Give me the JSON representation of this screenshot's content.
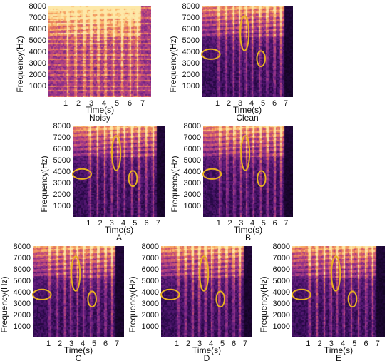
{
  "colors": {
    "background": "#000000",
    "highlight": "#e8b020",
    "colormap": [
      "#0a0214",
      "#2d0a4e",
      "#5a1a78",
      "#8c2f8a",
      "#c24a7c",
      "#e87a5a",
      "#fbb86a",
      "#fde8a8"
    ]
  },
  "axes": {
    "ylabel": "Frequency(Hz)",
    "xlabel": "Time(s)",
    "yticks": [
      "1000",
      "2000",
      "3000",
      "4000",
      "5000",
      "6000",
      "7000",
      "8000"
    ],
    "xticks": [
      "1",
      "2",
      "3",
      "4",
      "5",
      "6",
      "7"
    ]
  },
  "panels": [
    {
      "label": "Noisy",
      "highlights": false
    },
    {
      "label": "Clean",
      "highlights": true
    },
    {
      "label": "A",
      "highlights": true
    },
    {
      "label": "B",
      "highlights": true
    },
    {
      "label": "C",
      "highlights": true
    },
    {
      "label": "D",
      "highlights": true
    },
    {
      "label": "E",
      "highlights": true
    }
  ]
}
